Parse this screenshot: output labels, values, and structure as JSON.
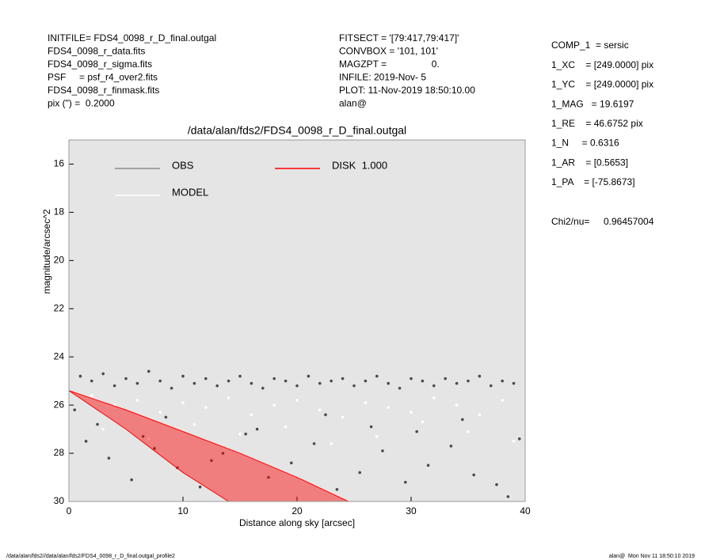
{
  "header": {
    "left": [
      "INITFILE= FDS4_0098_r_D_final.outgal",
      "FDS4_0098_r_data.fits",
      "FDS4_0098_r_sigma.fits",
      "PSF     = psf_r4_over2.fits",
      "FDS4_0098_r_finmask.fits",
      "pix (\") =  0.2000"
    ],
    "middle": [
      "FITSECT = '[79:417,79:417]'",
      "CONVBOX = '101, 101'",
      "MAGZPT =                 0.",
      "INFILE: 2019-Nov- 5",
      "PLOT: 11-Nov-2019 18:50:10.00",
      "alan@"
    ],
    "right": [
      "COMP_1  = sersic",
      "1_XC    = [249.0000] pix",
      "1_YC    = [249.0000] pix",
      "1_MAG   = 19.6197",
      "1_RE    = 46.6752 pix",
      "1_N     = 0.6316",
      "1_AR    = [0.5653]",
      "1_PA    = [-75.8673]"
    ],
    "chi_label": "Chi2/nu=",
    "chi_value": "0.96457004"
  },
  "footer": {
    "left": "/data/alan/fds2//data/alan/fds2/FDS4_0098_r_D_final.outgal_profile2",
    "right": "alan@  Mon Nov 11 18:50:10 2019"
  },
  "chart_data": {
    "type": "scatter",
    "title": "/data/alan/fds2/FDS4_0098_r_D_final.outgal",
    "x_label": "Distance along sky [arcsec]",
    "y_label": "magnitude/arcsec^2",
    "xlim": [
      0,
      40
    ],
    "xticks": [
      0,
      10,
      20,
      30,
      40
    ],
    "ylim": [
      30,
      15
    ],
    "yticks": [
      16,
      18,
      20,
      22,
      24,
      26,
      28,
      30
    ],
    "background": "#e5e5e5",
    "series": [
      {
        "name": "OBS",
        "color": "#4a4a4a",
        "legend_color": "#8c8c8c",
        "mark": "dots",
        "x": [
          1,
          2,
          3,
          4,
          5,
          6,
          7,
          8,
          9,
          10,
          11,
          12,
          13,
          14,
          15,
          16,
          17,
          18,
          19,
          20,
          21,
          22,
          23,
          24,
          25,
          26,
          27,
          28,
          29,
          30,
          31,
          32,
          33,
          34,
          35,
          36,
          37,
          38,
          39,
          1.5,
          3.5,
          5.5,
          7.5,
          9.5,
          11.5,
          13.5,
          15.5,
          17.5,
          19.5,
          21.5,
          23.5,
          25.5,
          27.5,
          29.5,
          31.5,
          33.5,
          35.5,
          37.5,
          39.5,
          0.5,
          2.5,
          6.5,
          8.5,
          12.5,
          16.5,
          22.5,
          26.5,
          30.5,
          34.5,
          38.5
        ],
        "values": [
          24.8,
          25.0,
          24.7,
          25.2,
          24.9,
          25.1,
          24.6,
          25.0,
          25.3,
          24.8,
          25.1,
          24.9,
          25.2,
          25.0,
          24.8,
          25.1,
          25.3,
          24.9,
          25.0,
          25.2,
          24.8,
          25.1,
          25.0,
          24.9,
          25.2,
          25.0,
          24.8,
          25.1,
          25.3,
          24.9,
          25.0,
          25.2,
          24.9,
          25.1,
          25.0,
          24.8,
          25.2,
          25.0,
          25.1,
          27.5,
          28.2,
          29.1,
          27.8,
          28.6,
          29.4,
          28.0,
          27.2,
          29.0,
          28.4,
          27.6,
          29.5,
          28.8,
          27.9,
          29.2,
          28.5,
          27.7,
          28.9,
          29.3,
          27.4,
          26.2,
          26.8,
          27.3,
          26.5,
          28.3,
          27.0,
          26.4,
          26.9,
          27.1,
          26.6,
          29.8
        ]
      },
      {
        "name": "MODEL",
        "color": "#ffffff",
        "legend_color": "#ffffff",
        "mark": "dots",
        "x": [
          2,
          4,
          6,
          8,
          10,
          12,
          14,
          16,
          18,
          20,
          22,
          24,
          26,
          28,
          30,
          32,
          34,
          36,
          38,
          3,
          7,
          11,
          15,
          19,
          23,
          27,
          31,
          35,
          39
        ],
        "values": [
          25.6,
          26.0,
          25.8,
          26.3,
          25.9,
          26.1,
          25.7,
          26.4,
          26.0,
          25.8,
          26.2,
          26.5,
          25.9,
          26.1,
          26.3,
          25.7,
          26.0,
          26.4,
          25.8,
          27.0,
          27.4,
          26.8,
          27.2,
          26.9,
          27.6,
          27.3,
          26.7,
          27.1,
          27.5
        ]
      },
      {
        "name": "DISK  1.000",
        "color": "#ff0000",
        "legend_color": "#ff0000",
        "mark": "band",
        "x": [
          0,
          5,
          10,
          15,
          20,
          24.5,
          14,
          10,
          5,
          0
        ],
        "values": [
          25.4,
          26.2,
          27.1,
          28,
          29,
          30,
          30,
          28.8,
          27,
          25.4
        ]
      }
    ]
  }
}
